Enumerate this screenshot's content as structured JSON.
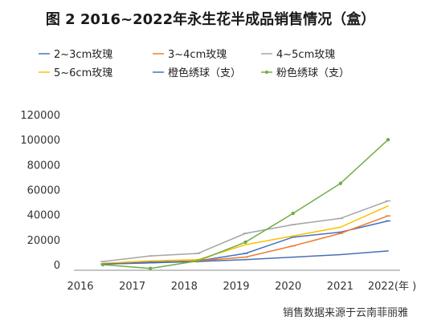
{
  "chart_data": {
    "type": "line",
    "title": "图 2  2016~2022年永生花半成品销售情况（盒）",
    "x": [
      "2016",
      "2017",
      "2018",
      "2019",
      "2020",
      "2021",
      "2022(年 )"
    ],
    "ylim": [
      0,
      120000
    ],
    "yticks": [
      0,
      20000,
      40000,
      60000,
      80000,
      100000,
      120000
    ],
    "legend_position": "top",
    "grid": false,
    "series": [
      {
        "name": "2~3cm玫瑰",
        "color": "#4472c4",
        "marker": "tick",
        "values": [
          500,
          2000,
          3000,
          9000,
          22000,
          26000,
          35000
        ]
      },
      {
        "name": "3~4cm玫瑰",
        "color": "#ed7d31",
        "marker": "tick",
        "values": [
          500,
          1500,
          3000,
          6000,
          15000,
          25000,
          39000
        ]
      },
      {
        "name": "4~5cm玫瑰",
        "color": "#a5a5a5",
        "marker": "tick",
        "values": [
          2500,
          7000,
          9000,
          25000,
          32000,
          37000,
          51000
        ]
      },
      {
        "name": "5~6cm玫瑰",
        "color": "#ffc000",
        "marker": "none",
        "values": [
          1000,
          3000,
          4000,
          16000,
          23000,
          30000,
          47000
        ]
      },
      {
        "name": "橙色绣球（支）",
        "color": "#4a6fb5",
        "marker": "none",
        "values": [
          500,
          1500,
          2500,
          4000,
          6000,
          8000,
          11000
        ]
      },
      {
        "name": "粉色绣球（支）",
        "color": "#70ad47",
        "marker": "dot",
        "values": [
          0,
          -3000,
          3000,
          18000,
          41000,
          65000,
          100000
        ]
      }
    ]
  },
  "source": "销售数据来源于云南菲丽雅"
}
